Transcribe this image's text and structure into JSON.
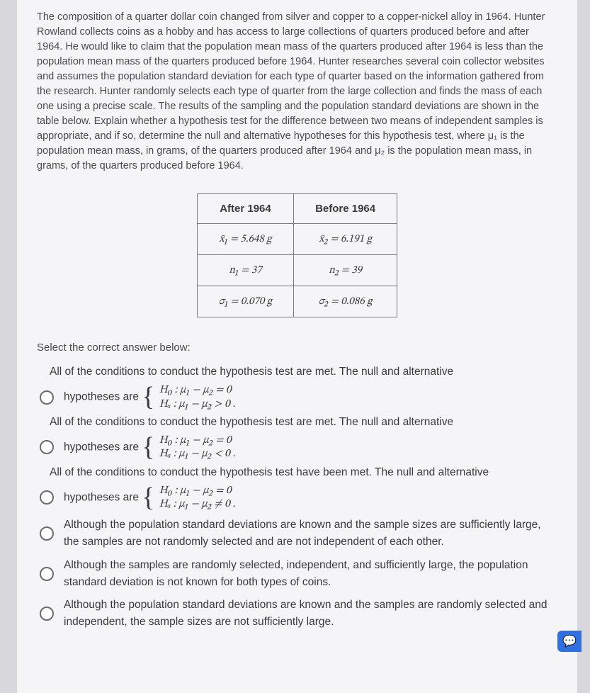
{
  "problem_text": "The composition of a quarter dollar coin changed from silver and copper to a copper-nickel alloy in 1964. Hunter Rowland collects coins as a hobby and has access to large collections of quarters produced before and after 1964. He would like to claim that the population mean mass of the quarters produced after 1964 is less than the population mean mass of the quarters produced before 1964. Hunter researches several coin collector websites and assumes the population standard deviation for each type of quarter based on the information gathered from the research. Hunter randomly selects each type of quarter from the large collection and finds the mass of each one using a precise scale. The results of the sampling and the population standard deviations are shown in the table below. Explain whether a hypothesis test for the difference between two means of independent samples is appropriate, and if so, determine the null and alternative hypotheses for this hypothesis test, where μ₁ is the population mean mass, in grams, of the quarters produced after 1964 and μ₂ is the population mean mass, in grams, of the quarters produced before 1964.",
  "table": {
    "headers": [
      "After 1964",
      "Before 1964"
    ],
    "rows": [
      [
        "x̄₁ = 5.648 g",
        "x̄₂ = 6.191 g"
      ],
      [
        "n₁ = 37",
        "n₂ = 39"
      ],
      [
        "σ₁ = 0.070 g",
        "σ₂ = 0.086 g"
      ]
    ]
  },
  "select_prompt": "Select the correct answer below:",
  "answers": {
    "a1_line1": "All of the conditions to conduct the hypothesis test are met. The null and alternative",
    "a1_prefix": "hypotheses are ",
    "a1_h0": "H₀ :  μ₁ − μ₂ = 0",
    "a1_ha": "Hₐ :  μ₁ − μ₂ > 0",
    "a2_line1": "All of the conditions to conduct the hypothesis test are met. The null and alternative",
    "a2_prefix": "hypotheses are ",
    "a2_h0": "H₀ :  μ₁ − μ₂ = 0",
    "a2_ha": "Hₐ :  μ₁ − μ₂ < 0",
    "a3_line1": "All of the conditions to conduct the hypothesis test have been met. The null and alternative",
    "a3_prefix": "hypotheses are ",
    "a3_h0": "H₀ :  μ₁ − μ₂ = 0",
    "a3_ha": "Hₐ :  μ₁ − μ₂ ≠ 0",
    "a4": "Although the population standard deviations are known and the sample sizes are sufficiently large, the samples are not randomly selected and are not independent of each other.",
    "a5": "Although the samples are randomly selected, independent, and sufficiently large, the population standard deviation is not known for both types of coins.",
    "a6": "Although the population standard deviations are known and the samples are randomly selected and independent, the sample sizes are not sufficiently large."
  },
  "chat_icon": "💬"
}
